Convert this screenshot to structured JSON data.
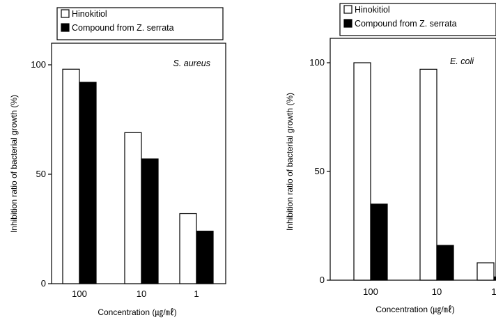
{
  "chart_data": [
    {
      "type": "bar",
      "annotation": "S. aureus",
      "categories": [
        "100",
        "10",
        "1"
      ],
      "series": [
        {
          "name": "Hinokitiol",
          "values": [
            98,
            69,
            32
          ],
          "color": "#ffffff"
        },
        {
          "name": "Compound from Z. serrata",
          "values": [
            92,
            57,
            24
          ],
          "color": "#000000"
        }
      ],
      "yticks": [
        "0",
        "50",
        "100"
      ],
      "ylim": [
        0,
        106
      ],
      "xlabel": "Concentration (㎍/㎖)",
      "ylabel": "Inhibition ratio of bacterial growth (%)",
      "legend": "top"
    },
    {
      "type": "bar",
      "annotation": "E. coli",
      "categories": [
        "100",
        "10",
        "1"
      ],
      "series": [
        {
          "name": "Hinokitiol",
          "values": [
            100,
            97,
            8
          ],
          "color": "#ffffff"
        },
        {
          "name": "Compound from Z. serrata",
          "values": [
            35,
            16,
            1.5
          ],
          "color": "#000000"
        }
      ],
      "yticks": [
        "0",
        "50",
        "100"
      ],
      "ylim": [
        0,
        110
      ],
      "xlabel": "Concentration (㎍/㎖)",
      "ylabel": "Inhibition ratio of bacterial growth (%)",
      "legend": "top"
    }
  ]
}
